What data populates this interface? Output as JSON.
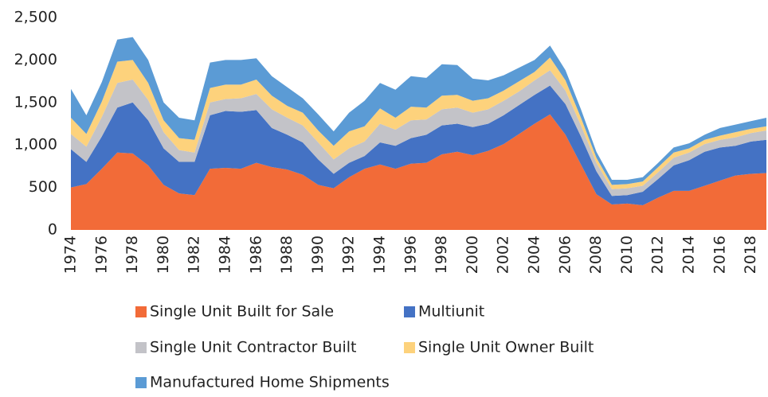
{
  "chart_data": {
    "type": "stacked-area",
    "x": [
      1974,
      1975,
      1976,
      1977,
      1978,
      1979,
      1980,
      1981,
      1982,
      1983,
      1984,
      1985,
      1986,
      1987,
      1988,
      1989,
      1990,
      1991,
      1992,
      1993,
      1994,
      1995,
      1996,
      1997,
      1998,
      1999,
      2000,
      2001,
      2002,
      2003,
      2004,
      2005,
      2006,
      2007,
      2008,
      2009,
      2010,
      2011,
      2012,
      2013,
      2014,
      2015,
      2016,
      2017,
      2018,
      2019
    ],
    "xlim": [
      1974,
      2019
    ],
    "xticks": [
      1974,
      1976,
      1978,
      1980,
      1982,
      1984,
      1986,
      1988,
      1990,
      1992,
      1994,
      1996,
      1998,
      2000,
      2002,
      2004,
      2006,
      2008,
      2010,
      2012,
      2014,
      2016,
      2018
    ],
    "ylim": [
      0,
      2500
    ],
    "yticks": [
      0,
      500,
      {
        "value": 1000,
        "label": "1,000"
      },
      {
        "value": 1500,
        "label": "1,500"
      },
      {
        "value": 2000,
        "label": "2,000"
      },
      {
        "value": 2500,
        "label": "2,500"
      }
    ],
    "series": [
      {
        "name": "Single Unit Built for Sale",
        "color": "#f26b38",
        "values": [
          500,
          540,
          720,
          910,
          900,
          760,
          530,
          430,
          410,
          720,
          730,
          720,
          790,
          740,
          710,
          650,
          530,
          490,
          620,
          720,
          770,
          720,
          780,
          790,
          890,
          920,
          880,
          930,
          1010,
          1130,
          1250,
          1360,
          1120,
          770,
          420,
          300,
          310,
          290,
          380,
          460,
          460,
          520,
          580,
          640,
          660,
          670
        ]
      },
      {
        "name": "Multiunit",
        "color": "#4472c4",
        "values": [
          450,
          260,
          380,
          530,
          600,
          530,
          430,
          370,
          390,
          630,
          670,
          670,
          620,
          460,
          410,
          380,
          300,
          170,
          170,
          150,
          260,
          270,
          300,
          330,
          340,
          330,
          330,
          320,
          340,
          340,
          340,
          340,
          360,
          330,
          270,
          100,
          100,
          160,
          220,
          300,
          360,
          400,
          390,
          350,
          380,
          390
        ]
      },
      {
        "name": "Single Unit Contractor Built",
        "color": "#c3c3c8",
        "values": [
          180,
          180,
          230,
          290,
          270,
          240,
          190,
          140,
          110,
          150,
          140,
          160,
          190,
          220,
          200,
          200,
          200,
          170,
          170,
          170,
          220,
          190,
          210,
          180,
          190,
          190,
          170,
          170,
          170,
          160,
          170,
          180,
          160,
          130,
          100,
          80,
          80,
          70,
          80,
          90,
          90,
          90,
          90,
          100,
          100,
          110
        ]
      },
      {
        "name": "Single Unit Owner Built",
        "color": "#fdd27c",
        "values": [
          190,
          150,
          180,
          250,
          230,
          200,
          140,
          140,
          150,
          170,
          170,
          160,
          170,
          160,
          140,
          150,
          140,
          160,
          200,
          180,
          180,
          140,
          160,
          140,
          160,
          150,
          140,
          130,
          120,
          120,
          100,
          150,
          120,
          90,
          60,
          50,
          50,
          50,
          60,
          60,
          50,
          50,
          50,
          60,
          50,
          50
        ]
      },
      {
        "name": "Manufactured Home Shipments",
        "color": "#5b9bd5",
        "values": [
          340,
          220,
          230,
          260,
          270,
          270,
          210,
          240,
          230,
          300,
          290,
          290,
          250,
          230,
          220,
          170,
          190,
          170,
          220,
          300,
          300,
          330,
          360,
          350,
          370,
          350,
          260,
          210,
          180,
          160,
          140,
          140,
          120,
          100,
          70,
          60,
          50,
          50,
          50,
          60,
          60,
          60,
          90,
          90,
          90,
          100
        ]
      }
    ]
  }
}
